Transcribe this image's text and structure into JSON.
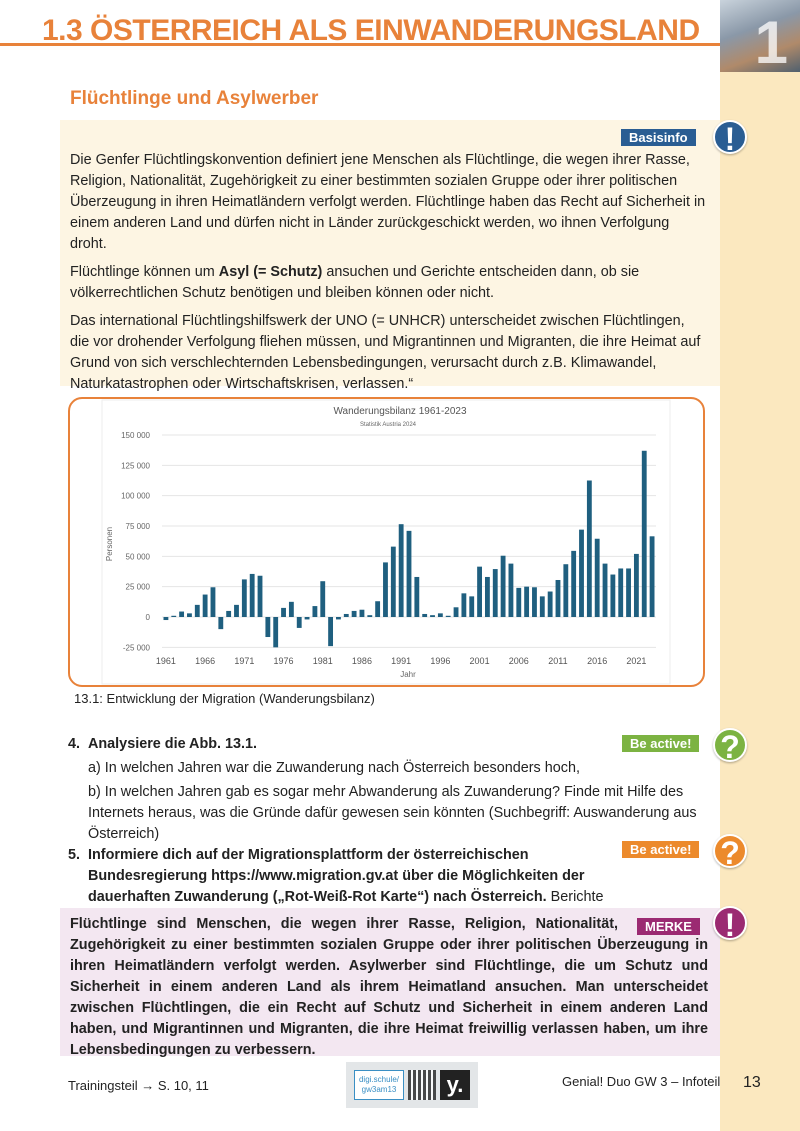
{
  "header": {
    "title": "1.3 ÖSTERREICH ALS EINWANDERUNGSLAND",
    "chapter_number": "1"
  },
  "section_title": "Flüchtlinge und Asylwerber",
  "basisinfo": {
    "badge": "Basisinfo",
    "icon": "exclamation-icon",
    "color": "#2a5d93",
    "p1": "Die Genfer Flüchtlingskonvention definiert jene Menschen als Flüchtlinge, die wegen ihrer Rasse, Religion, Nationalität, Zugehörigkeit zu einer bestimmten sozialen Gruppe oder ihrer politischen Überzeugung in ihren Heimatländern verfolgt werden. Flüchtlinge haben das Recht auf Sicherheit in einem anderen Land und dürfen nicht in Länder zurückgeschickt werden, wo ihnen Verfolgung droht.",
    "p2_pre": "Flüchtlinge können um ",
    "p2_bold": "Asyl (= Schutz)",
    "p2_post": " ansuchen und Gerichte entscheiden dann, ob sie völkerrechtlichen Schutz benötigen und bleiben können oder nicht.",
    "p3": "Das international Flüchtlingshilfswerk der UNO (= UNHCR) unterscheidet zwischen Flüchtlingen, die vor drohender Verfolgung fliehen müssen, und Migrantinnen und Migranten, die ihre Heimat auf Grund von sich verschlechternden Lebensbedingungen, verursacht durch z.B. Klimawandel, Naturkatastrophen oder Wirtschaftskrisen, verlassen.“"
  },
  "chart_data": {
    "type": "bar",
    "title": "Wanderungsbilanz 1961-2023",
    "subtitle": "Statistik Austria 2024",
    "xlabel": "Jahr",
    "ylabel": "Personen",
    "ylim": [
      -25000,
      150000
    ],
    "yticks": [
      "150 000",
      "125 000",
      "100 000",
      "75 000",
      "50 000",
      "25 000",
      "0",
      "-25 000"
    ],
    "xticks": [
      "1961",
      "1966",
      "1971",
      "1976",
      "1981",
      "1986",
      "1991",
      "1996",
      "2001",
      "2006",
      "2011",
      "2016",
      "2021"
    ],
    "grid": true,
    "color": "#1f5f7f",
    "x_start": 1961,
    "values": [
      -2500,
      1000,
      4500,
      3000,
      10000,
      18500,
      24500,
      -10000,
      5000,
      10000,
      31000,
      35500,
      34000,
      -16500,
      -25000,
      7500,
      12500,
      -9000,
      -2000,
      9000,
      29500,
      -24000,
      -2000,
      2500,
      5000,
      6000,
      1500,
      13000,
      45000,
      58000,
      76500,
      71000,
      33000,
      2500,
      1500,
      3000,
      1000,
      8000,
      19500,
      17000,
      41500,
      33000,
      39500,
      50500,
      44000,
      24000,
      25000,
      24500,
      17000,
      21000,
      30500,
      43500,
      54500,
      72000,
      112500,
      64500,
      44000,
      35000,
      40000,
      40000,
      52000,
      137000,
      66500
    ]
  },
  "caption": "13.1: Entwicklung der Migration (Wanderungsbilanz)",
  "tasks": [
    {
      "num": "4.",
      "title": "Analysiere die Abb. 13.1.",
      "badge": "Be active!",
      "badge_color": "#7cb342",
      "a": "a) In welchen Jahren war die Zuwanderung nach Österreich besonders hoch,",
      "b": "b) In welchen Jahren gab es sogar mehr Abwanderung als Zuwanderung? Finde mit Hilfe des Internets heraus, was die Gründe dafür gewesen sein könnten (Suchbegriff: Auswanderung aus Österreich)"
    },
    {
      "num": "5.",
      "title": "Informiere dich auf der Migrationsplattform der österreichischen Bundesregierung https://www.migration.gv.at über die Möglichkeiten der dauerhaften Zuwanderung („Rot-Weiß-Rot Karte“) nach Österreich.",
      "rest": " Berichte in der Klasse darüber.",
      "badge": "Be active!",
      "badge_color": "#ec8a2c"
    }
  ],
  "merke": {
    "badge": "MERKE",
    "color": "#9b2a72",
    "text": "Flüchtlinge sind Menschen, die wegen ihrer Rasse, Religion, Nationalität, Zugehörigkeit zu einer bestimmten sozialen Gruppe oder ihrer politischen Überzeugung in ihren Heimatländern verfolgt werden. Asylwerber sind Flüchtlinge, die um Schutz und Sicherheit in einem anderen Land als ihrem Heimatland ansuchen. Man unterscheidet zwischen Flüchtlingen, die ein Recht auf Schutz und Sicherheit in einem anderen Land haben, und Migrantinnen und Migranten, die ihre Heimat freiwillig verlassen haben, um ihre Lebensbedingungen zu verbessern."
  },
  "footer": {
    "left": "Trainingsteil → S. 10, 11",
    "digi": "digi.schule/ gw3am13",
    "logo": "y.",
    "right": "Genial! Duo GW 3 – Infoteil",
    "page": "13"
  }
}
